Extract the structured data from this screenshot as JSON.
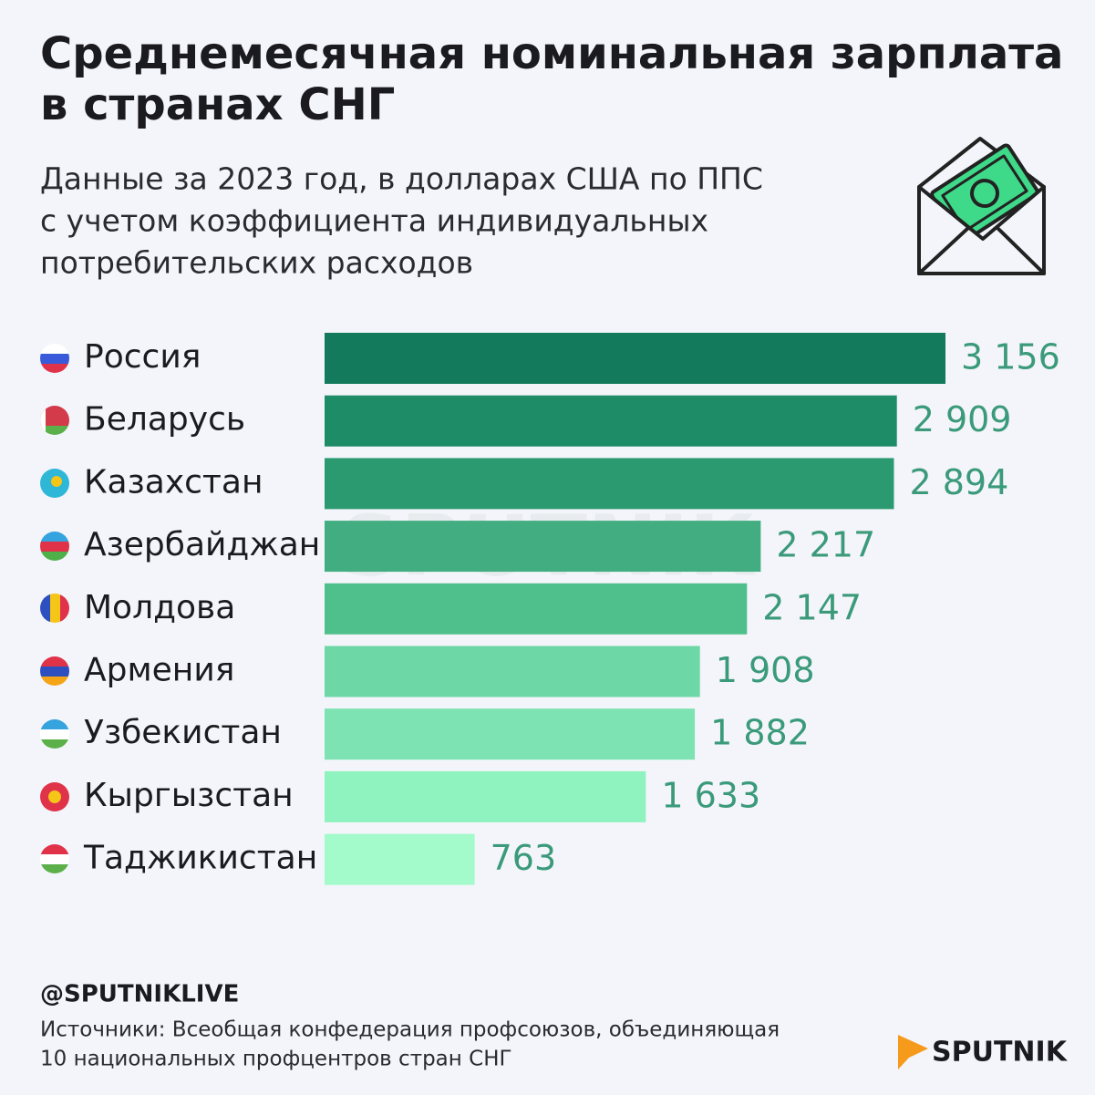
{
  "chart_data": {
    "type": "bar",
    "orientation": "horizontal",
    "title": [
      "Среднемесячная номинальная зарплата",
      "в странах СНГ"
    ],
    "subtitle": [
      "Данные за 2023 год, в долларах США по ППС",
      "с учетом коэффициента индивидуальных",
      "потребительских расходов"
    ],
    "categories": [
      "Россия",
      "Беларусь",
      "Казахстан",
      "Азербайджан",
      "Молдова",
      "Армения",
      "Узбекистан",
      "Кыргызстан",
      "Таджикистан"
    ],
    "values": [
      3156,
      2909,
      2894,
      2217,
      2147,
      1908,
      1882,
      1633,
      763
    ],
    "value_labels": [
      "3 156",
      "2 909",
      "2 894",
      "2 217",
      "2 147",
      "1 908",
      "1 882",
      "1 633",
      "763"
    ],
    "colors": [
      "#137a5b",
      "#1e8c66",
      "#2b9a71",
      "#41ad80",
      "#4fbf8b",
      "#6dd7a6",
      "#7de3b2",
      "#8ff3c0",
      "#a3fbcc"
    ],
    "handle": "@SPUTNIKLIVE",
    "source": [
      "Источники: Всеобщая конфедерация профсоюзов, объединяющая",
      "10 национальных профцентров стран СНГ"
    ],
    "logo": "SPUTNIK",
    "watermark": "SPUTNIK"
  }
}
